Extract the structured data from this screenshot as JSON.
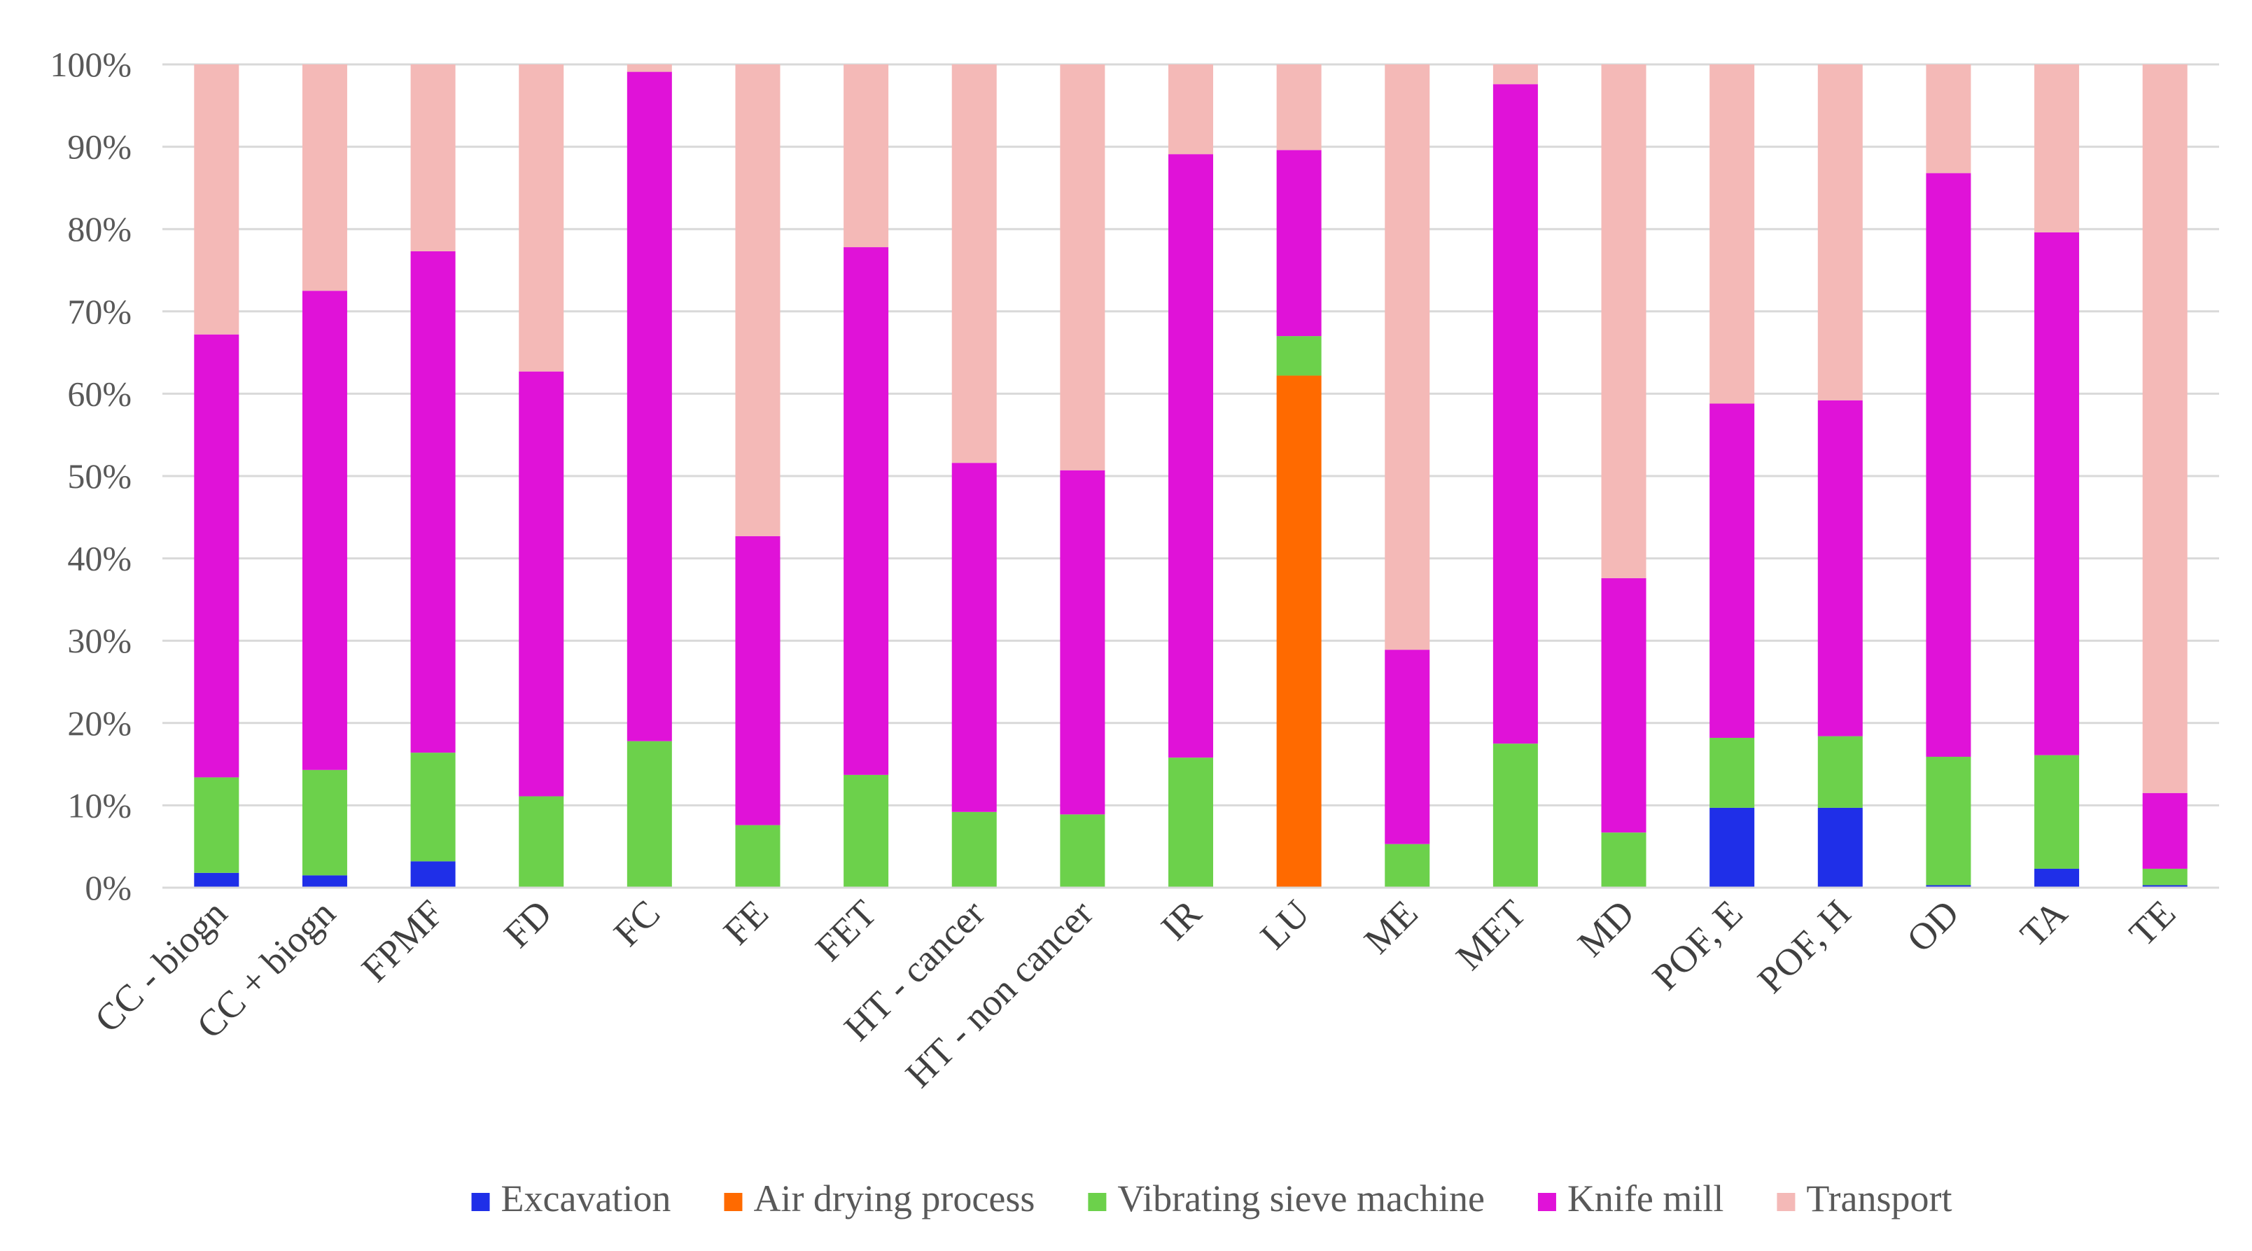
{
  "chart_data": {
    "type": "bar",
    "stacked": true,
    "percent": true,
    "title": "",
    "xlabel": "",
    "ylabel": "",
    "ylim": [
      0,
      100
    ],
    "yticks": [
      "0%",
      "10%",
      "20%",
      "30%",
      "40%",
      "50%",
      "60%",
      "70%",
      "80%",
      "90%",
      "100%"
    ],
    "grid": true,
    "legend_position": "bottom",
    "categories": [
      "CC - biogn",
      "CC + biogn",
      "FPMF",
      "FD",
      "FC",
      "FE",
      "FET",
      "HT - cancer",
      "HT - non cancer",
      "IR",
      "LU",
      "ME",
      "MET",
      "MD",
      "POF, E",
      "POF, H",
      "OD",
      "TA",
      "TE"
    ],
    "series": [
      {
        "name": "Excavation",
        "color": "#1F2FE8",
        "values": [
          1.8,
          1.5,
          3.2,
          0,
          0,
          0,
          0,
          0,
          0,
          0,
          0,
          0,
          0,
          0,
          9.7,
          9.7,
          0.3,
          2.3,
          0.3
        ]
      },
      {
        "name": "Air drying process",
        "color": "#FF6A00",
        "values": [
          0,
          0,
          0,
          0,
          0,
          0,
          0,
          0,
          0,
          0,
          62.2,
          0,
          0,
          0,
          0,
          0,
          0,
          0,
          0
        ]
      },
      {
        "name": "Vibrating sieve machine",
        "color": "#6CD14B",
        "values": [
          11.6,
          12.8,
          13.2,
          11.1,
          17.8,
          7.6,
          13.7,
          9.2,
          8.9,
          15.8,
          4.8,
          5.3,
          17.5,
          6.7,
          8.5,
          8.7,
          15.6,
          13.8,
          2.0
        ]
      },
      {
        "name": "Knife mill",
        "color": "#E012D8",
        "values": [
          53.8,
          58.2,
          60.9,
          51.6,
          81.3,
          35.1,
          64.1,
          42.4,
          41.8,
          73.3,
          22.6,
          23.6,
          80.1,
          30.9,
          40.6,
          40.8,
          70.9,
          63.5,
          9.2
        ]
      },
      {
        "name": "Transport",
        "color": "#F4B9B7",
        "values": [
          32.8,
          27.5,
          22.7,
          37.3,
          0.9,
          57.3,
          22.2,
          48.4,
          49.3,
          10.9,
          10.4,
          71.1,
          2.4,
          62.4,
          41.2,
          40.8,
          13.2,
          20.4,
          88.5
        ]
      }
    ]
  }
}
